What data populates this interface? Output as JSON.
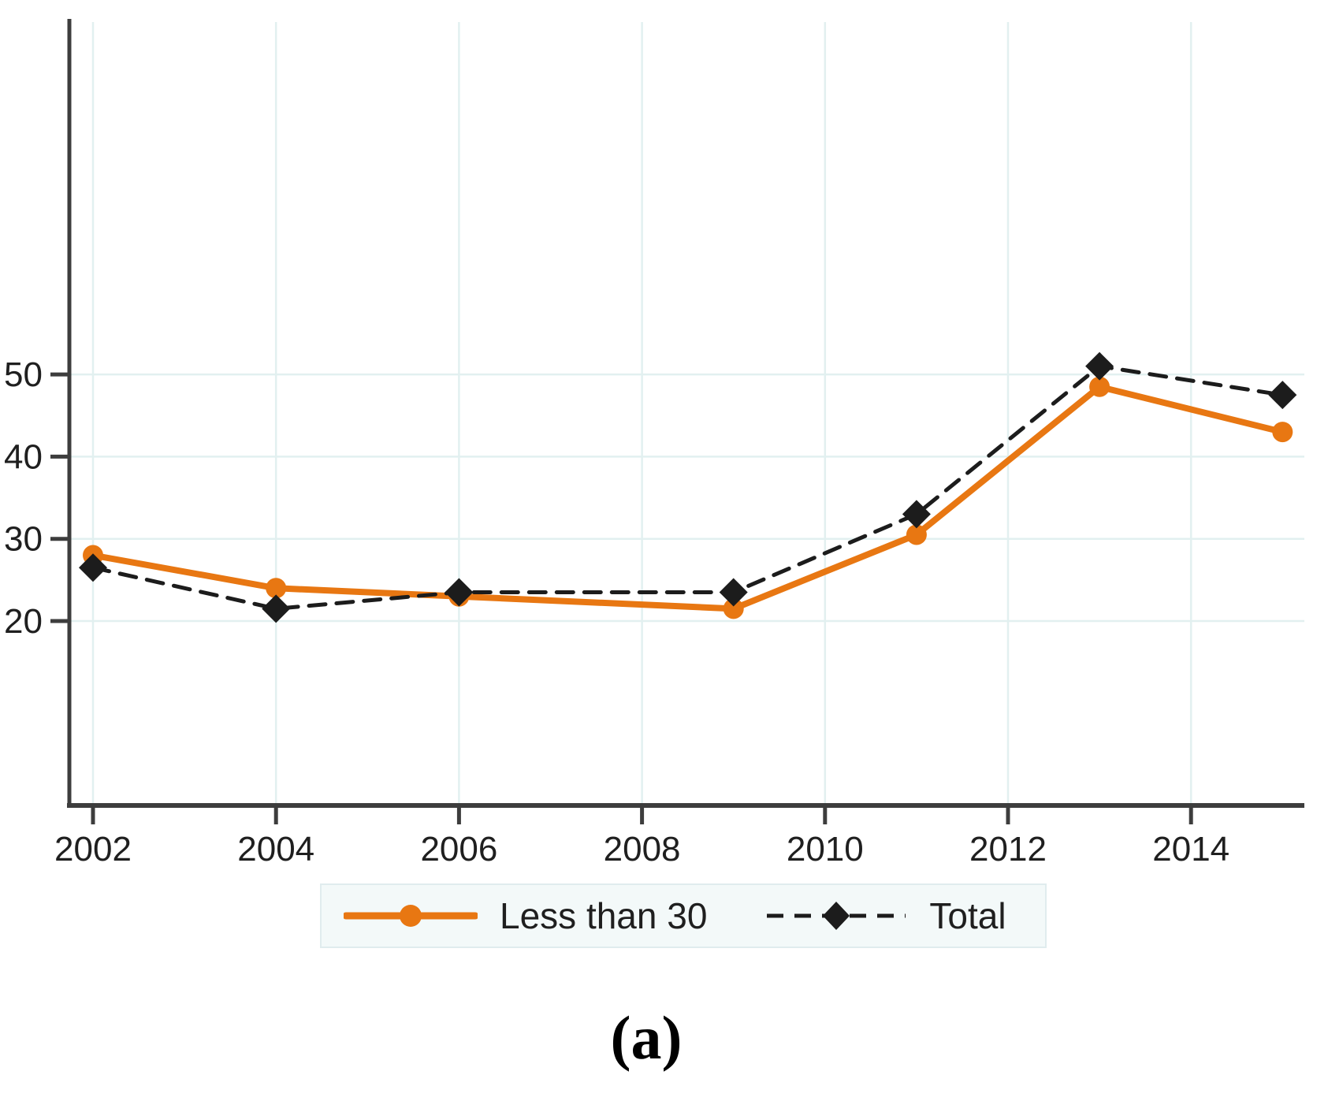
{
  "figure": {
    "caption": "(a)"
  },
  "chart_data": {
    "type": "line",
    "title": "",
    "xlabel": "",
    "ylabel": "",
    "x": [
      2002,
      2004,
      2006,
      2009,
      2011,
      2013,
      2015
    ],
    "series": [
      {
        "name": "Less than 30",
        "values": [
          28,
          24,
          23,
          21.5,
          30.5,
          48.5,
          43
        ],
        "color": "#e87712",
        "line_style": "solid",
        "marker": "circle"
      },
      {
        "name": "Total",
        "values": [
          26.5,
          21.5,
          23.5,
          23.5,
          33,
          51,
          47.5
        ],
        "color": "#1c1c1c",
        "line_style": "dashed",
        "marker": "diamond"
      }
    ],
    "x_ticks": [
      2002,
      2004,
      2006,
      2008,
      2010,
      2012,
      2014
    ],
    "y_ticks": [
      20,
      30,
      40,
      50
    ],
    "x_range": [
      2001.7,
      2015.3
    ],
    "y_range_est": [
      -2,
      93
    ],
    "grid": true,
    "grid_color": "#e2f0f0",
    "axis_color": "#3d3d3d",
    "tick_label_color": "#1f1f1f",
    "legend_position": "bottom"
  }
}
